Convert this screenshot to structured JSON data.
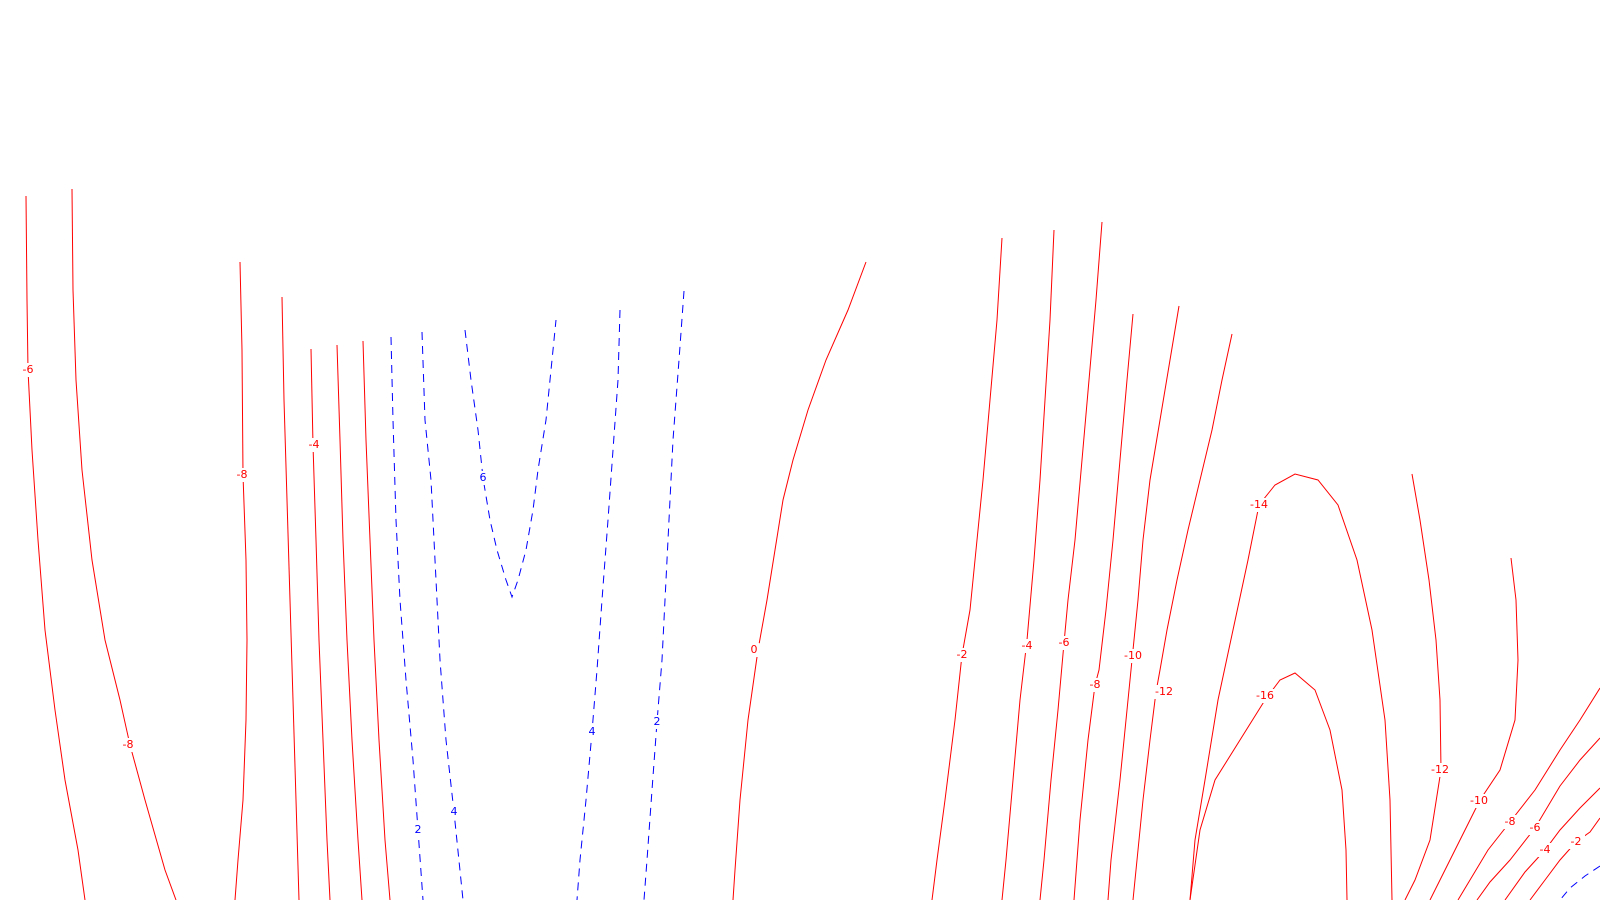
{
  "chart_data": {
    "type": "contour",
    "title": "",
    "xlabel": "",
    "ylabel": "",
    "grid": false,
    "negative_color": "#ff0000",
    "positive_color": "#0000ff",
    "negative_linestyle": "solid",
    "positive_linestyle": "dashed",
    "levels_shown": [
      "-16",
      "-14",
      "-12",
      "-10",
      "-8",
      "-6",
      "-4",
      "-2",
      "0",
      "2",
      "4",
      "6"
    ],
    "contours": [
      {
        "label": "-6",
        "sign": "neg"
      },
      {
        "label": "-8",
        "sign": "neg"
      },
      {
        "label": "-8",
        "sign": "neg"
      },
      {
        "label": "-6",
        "sign": "neg"
      },
      {
        "label": "-4",
        "sign": "neg"
      },
      {
        "label": "-2",
        "sign": "neg"
      },
      {
        "label": "0",
        "sign": "neg"
      },
      {
        "label": "2",
        "sign": "pos"
      },
      {
        "label": "4",
        "sign": "pos"
      },
      {
        "label": "6",
        "sign": "pos"
      },
      {
        "label": "4",
        "sign": "pos"
      },
      {
        "label": "2",
        "sign": "pos"
      },
      {
        "label": "0",
        "sign": "neg"
      },
      {
        "label": "-2",
        "sign": "neg"
      },
      {
        "label": "-4",
        "sign": "neg"
      },
      {
        "label": "-6",
        "sign": "neg"
      },
      {
        "label": "-8",
        "sign": "neg"
      },
      {
        "label": "-10",
        "sign": "neg"
      },
      {
        "label": "-12",
        "sign": "neg"
      },
      {
        "label": "-14",
        "sign": "neg"
      },
      {
        "label": "-16",
        "sign": "neg"
      },
      {
        "label": "-12",
        "sign": "neg"
      },
      {
        "label": "-10",
        "sign": "neg"
      },
      {
        "label": "-8",
        "sign": "neg"
      },
      {
        "label": "-6",
        "sign": "neg"
      },
      {
        "label": "-4",
        "sign": "neg"
      },
      {
        "label": "-2",
        "sign": "neg"
      },
      {
        "label": "0",
        "sign": "pos"
      }
    ]
  }
}
